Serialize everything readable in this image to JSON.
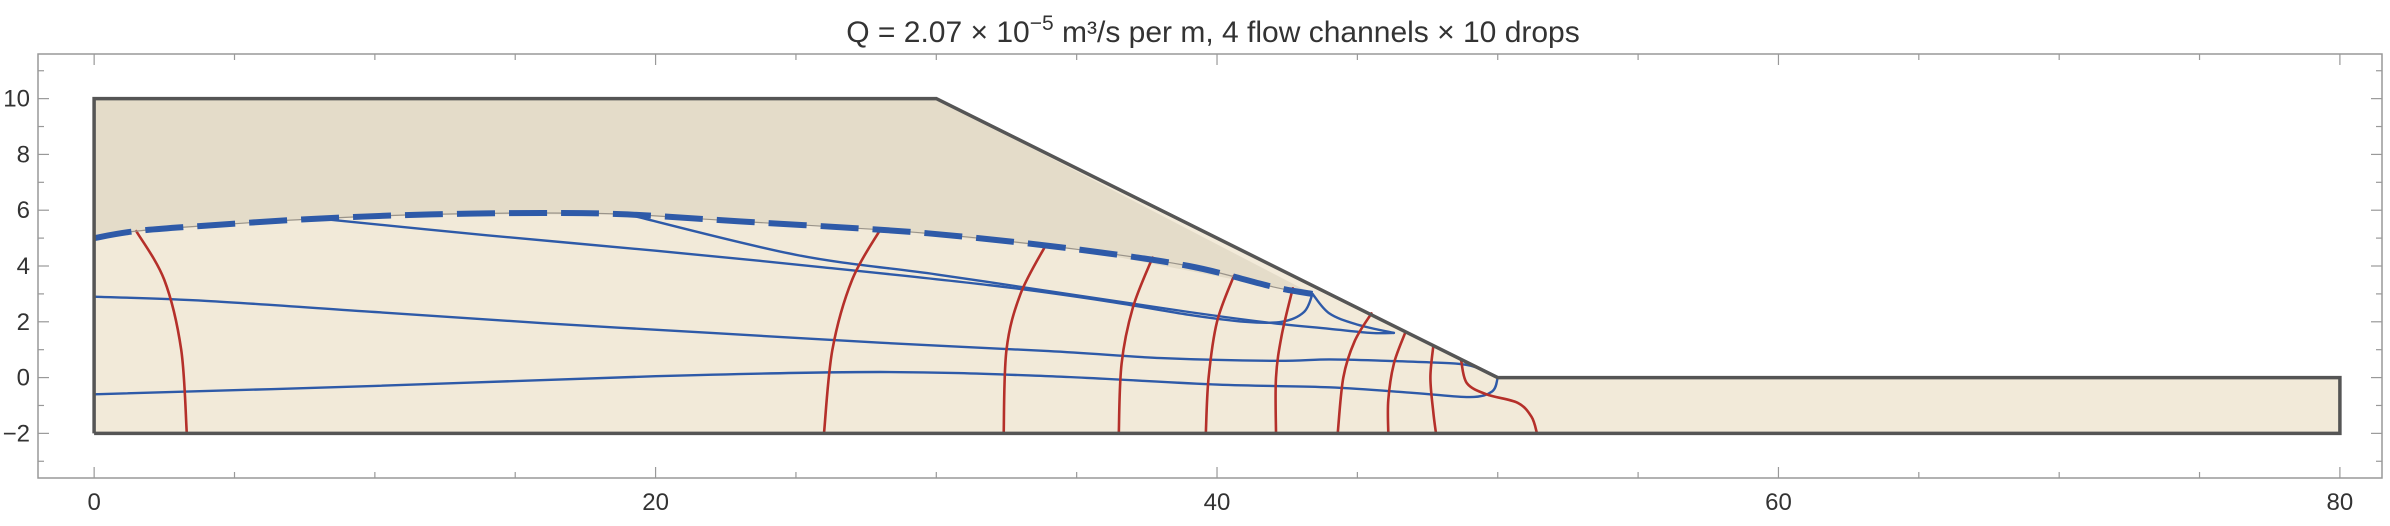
{
  "chart_data": {
    "type": "line",
    "title": {
      "q_prefix": "Q = 2.07 × 10",
      "q_exponent": "−5",
      "q_suffix": " m³/s per m,   4 flow channels × 10 drops"
    },
    "xlim": [
      -2,
      81.5
    ],
    "ylim": [
      -3.6,
      11.6
    ],
    "x_ticks": [
      0,
      20,
      40,
      60,
      80
    ],
    "y_ticks": [
      -2,
      0,
      2,
      4,
      6,
      8,
      10
    ],
    "grid": false,
    "colors": {
      "soil": "#f2ead9",
      "dry_soil": "#e4dcc9",
      "outline": "#555555",
      "phreatic": "#2e5aa8",
      "flow_line": "#2e5aa8",
      "equipotential": "#b5302a",
      "frame": "#999999"
    },
    "geometry": {
      "dam_outline": [
        [
          0,
          -2
        ],
        [
          0,
          10
        ],
        [
          30,
          10
        ],
        [
          50,
          0
        ],
        [
          80,
          0
        ],
        [
          80,
          -2
        ],
        [
          0,
          -2
        ]
      ],
      "dry_zone": [
        [
          0,
          10
        ],
        [
          30,
          10
        ],
        [
          43.4,
          3.0
        ],
        [
          42,
          3.25
        ],
        [
          35,
          4.6
        ],
        [
          28,
          5.3
        ],
        [
          19,
          5.85
        ],
        [
          12,
          5.85
        ],
        [
          8,
          5.7
        ],
        [
          1.5,
          5.25
        ],
        [
          0,
          5.0
        ]
      ]
    },
    "series": [
      {
        "role": "phreatic",
        "points": [
          [
            0,
            5.0
          ],
          [
            1.5,
            5.25
          ],
          [
            4,
            5.45
          ],
          [
            8,
            5.7
          ],
          [
            12,
            5.85
          ],
          [
            16,
            5.9
          ],
          [
            19,
            5.85
          ],
          [
            23,
            5.6
          ],
          [
            28,
            5.3
          ],
          [
            31,
            5.05
          ],
          [
            35,
            4.6
          ],
          [
            39,
            4.0
          ],
          [
            42,
            3.25
          ],
          [
            43.4,
            3.0
          ]
        ]
      },
      {
        "role": "flow_line",
        "points": [
          [
            8,
            5.7
          ],
          [
            14,
            5.1
          ],
          [
            20,
            4.55
          ],
          [
            26,
            3.95
          ],
          [
            32,
            3.3
          ],
          [
            36,
            2.75
          ],
          [
            39,
            2.25
          ],
          [
            41,
            2.0
          ],
          [
            42.3,
            2.0
          ],
          [
            43.1,
            2.35
          ],
          [
            43.4,
            3.0
          ]
        ]
      },
      {
        "role": "flow_line",
        "points": [
          [
            19,
            5.85
          ],
          [
            25,
            4.4
          ],
          [
            30,
            3.7
          ],
          [
            35,
            2.95
          ],
          [
            39,
            2.35
          ],
          [
            42,
            1.95
          ],
          [
            44,
            1.75
          ],
          [
            45.5,
            1.6
          ],
          [
            46.3,
            1.6
          ]
        ]
      },
      {
        "role": "flow_line",
        "points": [
          [
            43.4,
            3.0
          ],
          [
            44,
            2.3
          ],
          [
            45,
            1.9
          ],
          [
            46.3,
            1.6
          ]
        ]
      },
      {
        "role": "flow_line",
        "points": [
          [
            0,
            2.9
          ],
          [
            4,
            2.75
          ],
          [
            10,
            2.35
          ],
          [
            16,
            1.95
          ],
          [
            22,
            1.6
          ],
          [
            28,
            1.25
          ],
          [
            34,
            0.95
          ],
          [
            38,
            0.7
          ],
          [
            42,
            0.6
          ],
          [
            44,
            0.65
          ],
          [
            46,
            0.6
          ],
          [
            48.5,
            0.5
          ],
          [
            49.3,
            0.35
          ]
        ]
      },
      {
        "role": "flow_line",
        "points": [
          [
            0,
            -0.6
          ],
          [
            10,
            -0.3
          ],
          [
            20,
            0.05
          ],
          [
            28,
            0.2
          ],
          [
            34,
            0.05
          ],
          [
            40,
            -0.25
          ],
          [
            44,
            -0.35
          ],
          [
            47,
            -0.55
          ],
          [
            49,
            -0.7
          ],
          [
            49.8,
            -0.5
          ],
          [
            50,
            0
          ]
        ]
      },
      {
        "role": "equipotential",
        "points": [
          [
            1.5,
            5.25
          ],
          [
            2.5,
            3.5
          ],
          [
            3.1,
            1.0
          ],
          [
            3.3,
            -2.0
          ]
        ]
      },
      {
        "role": "equipotential",
        "points": [
          [
            28,
            5.3
          ],
          [
            27,
            3.5
          ],
          [
            26.3,
            1.0
          ],
          [
            26,
            -2.0
          ]
        ]
      },
      {
        "role": "equipotential",
        "points": [
          [
            33.9,
            4.75
          ],
          [
            33,
            3.0
          ],
          [
            32.5,
            1.0
          ],
          [
            32.4,
            -2.0
          ]
        ]
      },
      {
        "role": "equipotential",
        "points": [
          [
            37.7,
            4.3
          ],
          [
            37,
            2.5
          ],
          [
            36.6,
            0.5
          ],
          [
            36.5,
            -2.0
          ]
        ]
      },
      {
        "role": "equipotential",
        "points": [
          [
            40.6,
            3.65
          ],
          [
            40,
            2.0
          ],
          [
            39.7,
            0.0
          ],
          [
            39.6,
            -2.0
          ]
        ]
      },
      {
        "role": "equipotential",
        "points": [
          [
            42.7,
            3.2
          ],
          [
            42.3,
            1.5
          ],
          [
            42.1,
            0.0
          ],
          [
            42.1,
            -2.0
          ]
        ]
      },
      {
        "role": "equipotential",
        "points": [
          [
            45.5,
            2.3
          ],
          [
            44.9,
            1.3
          ],
          [
            44.5,
            0.0
          ],
          [
            44.3,
            -2.0
          ]
        ]
      },
      {
        "role": "equipotential",
        "points": [
          [
            46.7,
            1.6
          ],
          [
            46.3,
            0.5
          ],
          [
            46.1,
            -0.8
          ],
          [
            46.1,
            -2.0
          ]
        ]
      },
      {
        "role": "equipotential",
        "points": [
          [
            47.7,
            1.1
          ],
          [
            47.6,
            0.0
          ],
          [
            47.7,
            -1.2
          ],
          [
            47.8,
            -2.0
          ]
        ]
      },
      {
        "role": "equipotential",
        "points": [
          [
            48.7,
            0.6
          ],
          [
            48.9,
            -0.2
          ],
          [
            49.6,
            -0.6
          ],
          [
            50.7,
            -0.9
          ],
          [
            51.2,
            -1.4
          ],
          [
            51.4,
            -2.0
          ]
        ]
      }
    ]
  }
}
